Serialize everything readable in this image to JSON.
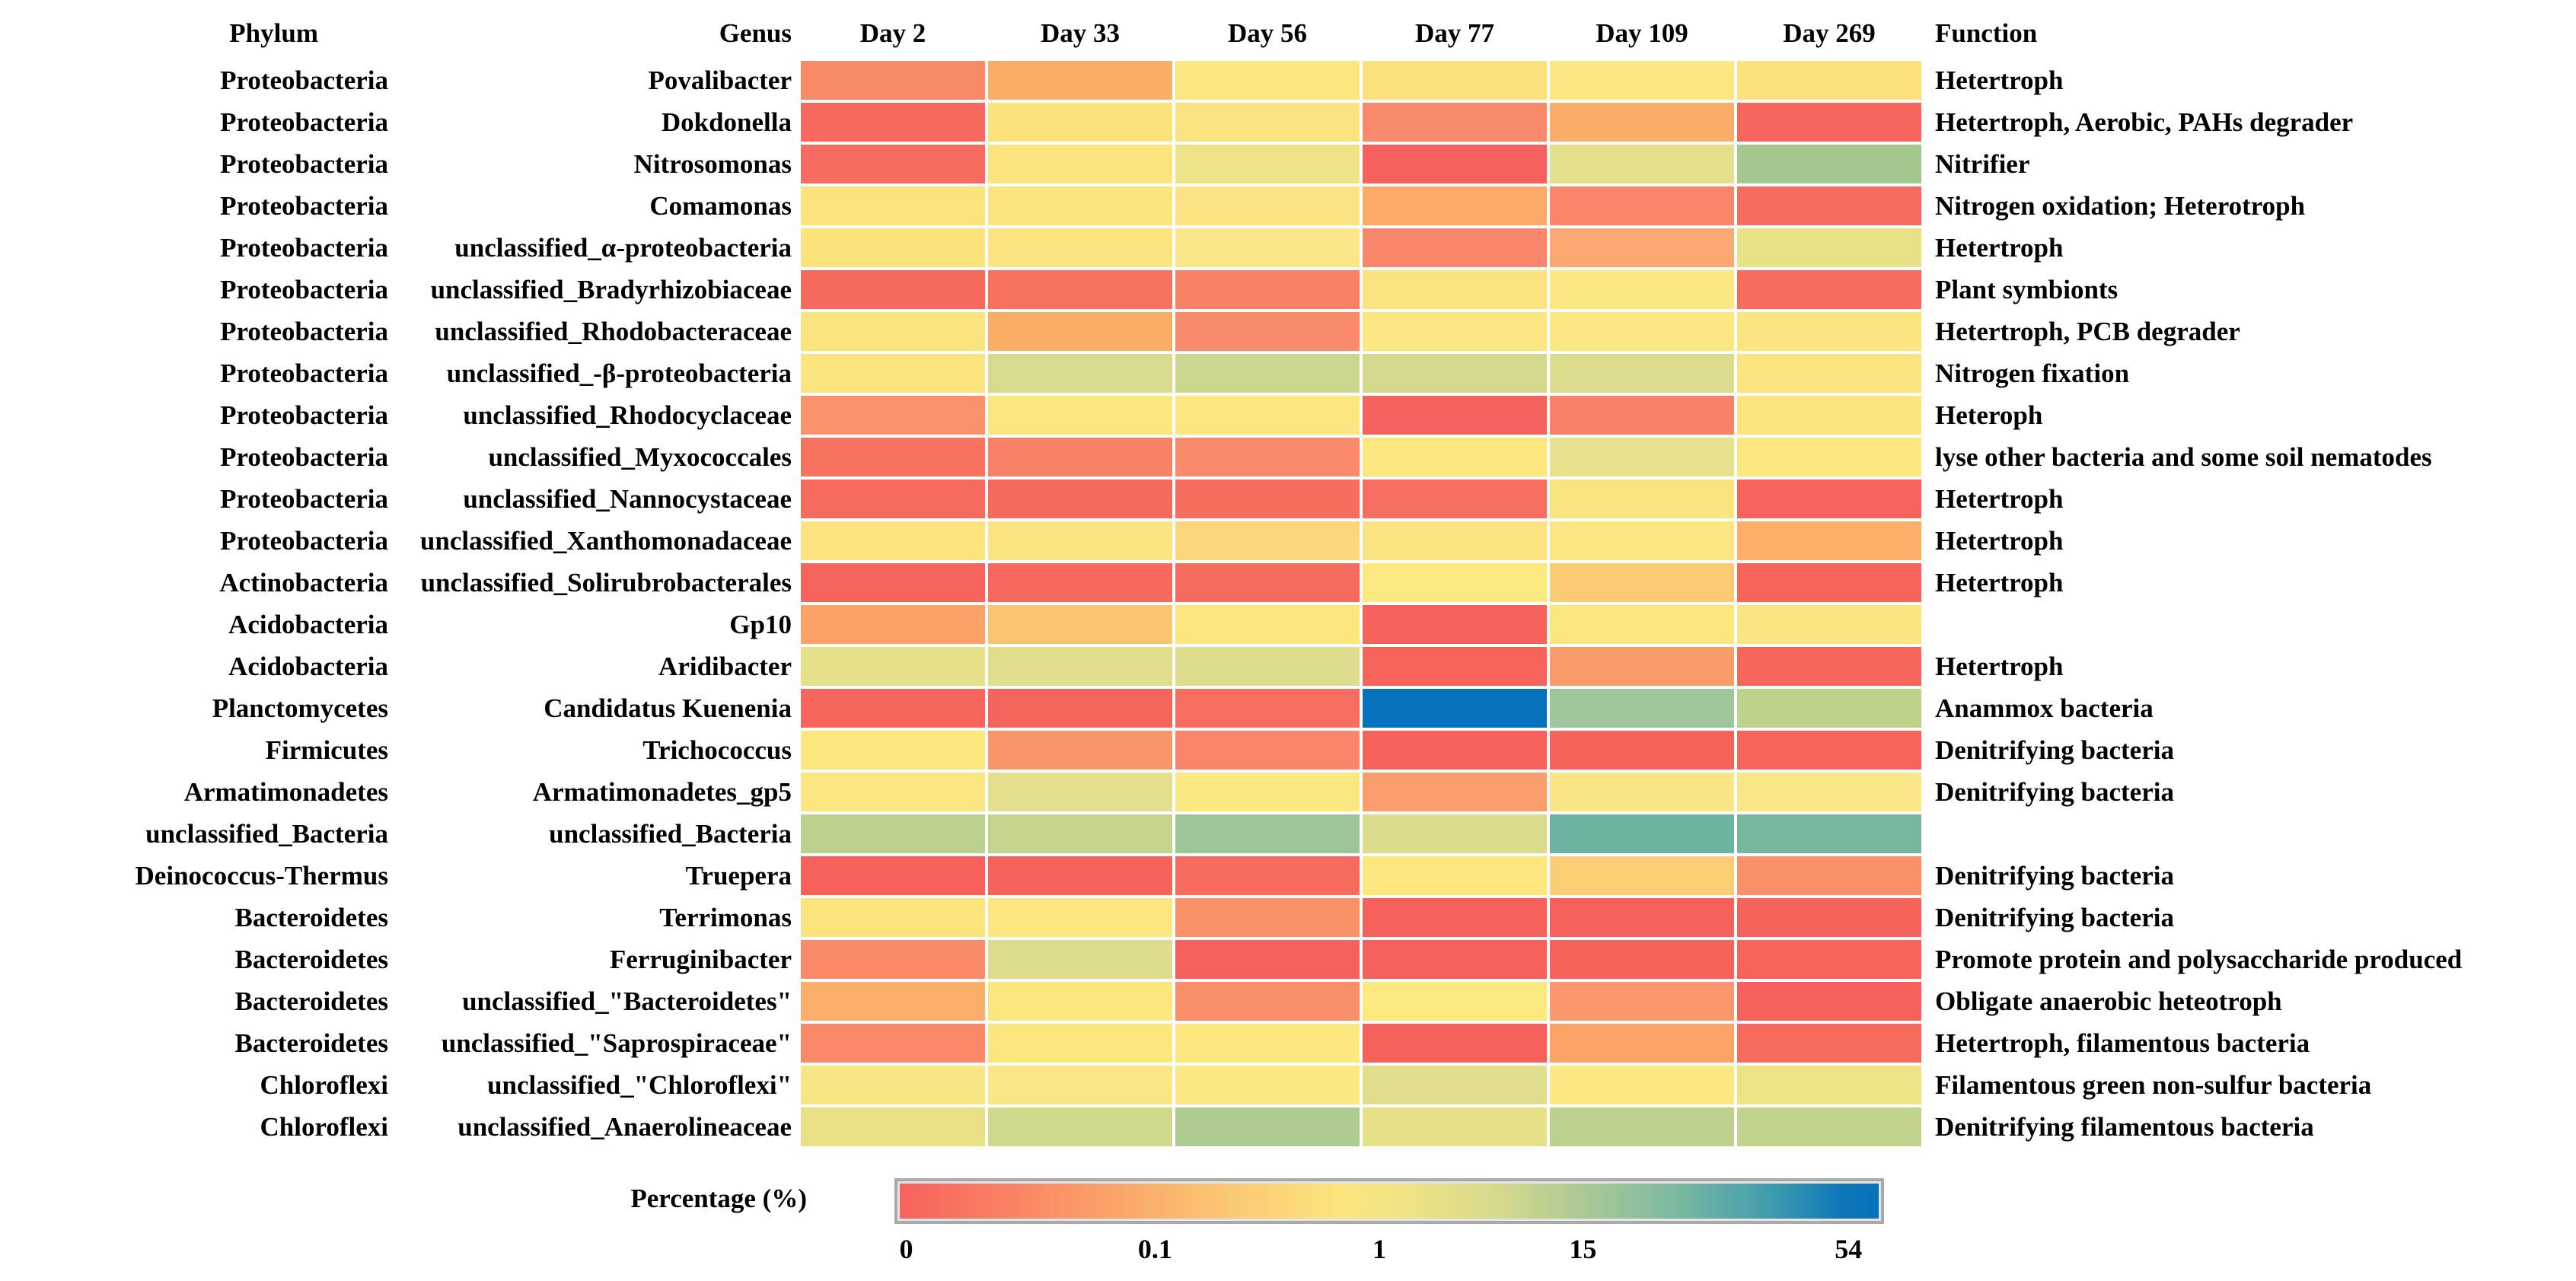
{
  "chart_data": {
    "type": "heatmap",
    "title": "",
    "headers": {
      "phylum": "Phylum",
      "genus": "Genus",
      "function": "Function"
    },
    "columns": [
      "Day 2",
      "Day 33",
      "Day 56",
      "Day 77",
      "Day 109",
      "Day 269"
    ],
    "rows": [
      {
        "phylum": "Proteobacteria",
        "genus": "Povalibacter",
        "function": "Hetertroph",
        "colors": [
          "#F98A68",
          "#FBAD67",
          "#FCE77F",
          "#FBE07C",
          "#FCE681",
          "#FCE17D"
        ]
      },
      {
        "phylum": "Proteobacteria",
        "genus": "Dokdonella",
        "function": "Hetertroph, Aerobic, PAHs degrader",
        "colors": [
          "#F7685F",
          "#FBE27B",
          "#FBE382",
          "#F9896C",
          "#FBAC68",
          "#F6655E"
        ]
      },
      {
        "phylum": "Proteobacteria",
        "genus": "Nitrosomonas",
        "function": "Nitrifier",
        "colors": [
          "#F76B60",
          "#FCE47D",
          "#EFE389",
          "#F6615D",
          "#E4E08C",
          "#A3C78F"
        ]
      },
      {
        "phylum": "Proteobacteria",
        "genus": "Comamonas",
        "function": "Nitrogen oxidation; Heterotroph",
        "colors": [
          "#FCE37C",
          "#FCE47E",
          "#FBE383",
          "#FBAB67",
          "#F9866B",
          "#F76C60"
        ]
      },
      {
        "phylum": "Proteobacteria",
        "genus": "unclassified_α-proteobacteria",
        "function": "Hetertroph",
        "colors": [
          "#FCE27B",
          "#FCE480",
          "#FBE689",
          "#F9856B",
          "#FBA873",
          "#E9E187"
        ]
      },
      {
        "phylum": "Proteobacteria",
        "genus": "unclassified_Bradyrhizobiaceae",
        "function": "Plant symbionts",
        "colors": [
          "#F66A5E",
          "#F7715F",
          "#F98165",
          "#FBE380",
          "#FCE883",
          "#F76C5F"
        ]
      },
      {
        "phylum": "Proteobacteria",
        "genus": "unclassified_Rhodobacteraceae",
        "function": "Hetertroph, PCB degrader",
        "colors": [
          "#FBE37E",
          "#FBAD66",
          "#F98A6A",
          "#FCE681",
          "#FCE782",
          "#FCE480"
        ]
      },
      {
        "phylum": "Proteobacteria",
        "genus": "unclassified_-β-proteobacteria",
        "function": "Nitrogen fixation",
        "colors": [
          "#FCE47E",
          "#D8DB8E",
          "#CBD78F",
          "#D5D98D",
          "#DCDC8E",
          "#FCE480"
        ]
      },
      {
        "phylum": "Proteobacteria",
        "genus": "unclassified_Rhodocyclaceae",
        "function": "Heteroph",
        "colors": [
          "#FA926C",
          "#FCE67F",
          "#FCE680",
          "#F6635E",
          "#F9816A",
          "#FCE57F"
        ]
      },
      {
        "phylum": "Proteobacteria",
        "genus": "unclassified_Myxococcales",
        "function": "lyse other bacteria and some soil nematodes",
        "colors": [
          "#F7725F",
          "#F98167",
          "#F98B6B",
          "#FCE77F",
          "#E8E18D",
          "#FCE780"
        ]
      },
      {
        "phylum": "Proteobacteria",
        "genus": "unclassified_Nannocystaceae",
        "function": "Hetertroph",
        "colors": [
          "#F66B5D",
          "#F66A5D",
          "#F66D5E",
          "#F66E5F",
          "#FBE47F",
          "#F6645D"
        ]
      },
      {
        "phylum": "Proteobacteria",
        "genus": "unclassified_Xanthomonadaceae",
        "function": "Hetertroph",
        "colors": [
          "#FCE37D",
          "#FCE480",
          "#FBD77B",
          "#FBE381",
          "#FCE682",
          "#FBAF69"
        ]
      },
      {
        "phylum": "Actinobacteria",
        "genus": "unclassified_Solirubrobacterales",
        "function": "Hetertroph",
        "colors": [
          "#F6655D",
          "#F7695E",
          "#F76B5F",
          "#FCEA81",
          "#FBCB73",
          "#F6645C"
        ]
      },
      {
        "phylum": "Acidobacteria",
        "genus": "Gp10",
        "function": "",
        "colors": [
          "#FBA268",
          "#FBC571",
          "#FCE77E",
          "#F6625C",
          "#FCE77E",
          "#FCE480"
        ]
      },
      {
        "phylum": "Acidobacteria",
        "genus": "Aridibacter",
        "function": "Hetertroph",
        "colors": [
          "#E6E08A",
          "#E0DE8C",
          "#DEDD8D",
          "#F6645C",
          "#FA9B6C",
          "#F6665D"
        ]
      },
      {
        "phylum": "Planctomycetes",
        "genus": "Candidatus Kuenenia",
        "function": "Anammox bacteria",
        "colors": [
          "#F6665C",
          "#F6655C",
          "#F76D60",
          "#0572BB",
          "#9EC59B",
          "#BED28C"
        ]
      },
      {
        "phylum": "Firmicutes",
        "genus": "Trichococcus",
        "function": "Denitrifying bacteria",
        "colors": [
          "#FCE67E",
          "#FA9569",
          "#F9856A",
          "#F6615B",
          "#F6635B",
          "#F6645C"
        ]
      },
      {
        "phylum": "Armatimonadetes",
        "genus": "Armatimonadetes_gp5",
        "function": "Denitrifying bacteria",
        "colors": [
          "#FCE682",
          "#E3DF8C",
          "#FCE883",
          "#FA9D6D",
          "#FAE586",
          "#FBE789"
        ]
      },
      {
        "phylum": "unclassified_Bacteria",
        "genus": "unclassified_Bacteria",
        "function": "",
        "colors": [
          "#BCD18D",
          "#C5D48D",
          "#9EC599",
          "#DADB8B",
          "#6CB3A1",
          "#76B79D"
        ]
      },
      {
        "phylum": "Deinococcus-Thermus",
        "genus": "Truepera",
        "function": "Denitrifying bacteria",
        "colors": [
          "#F6615B",
          "#F6635B",
          "#F76B5E",
          "#FCE77E",
          "#FBCD74",
          "#FA9068"
        ]
      },
      {
        "phylum": "Bacteroidetes",
        "genus": "Terrimonas",
        "function": "Denitrifying bacteria",
        "colors": [
          "#FCE47D",
          "#FCE680",
          "#FA9268",
          "#F6615B",
          "#F6625B",
          "#F6635B"
        ]
      },
      {
        "phylum": "Bacteroidetes",
        "genus": "Ferruginibacter",
        "function": "Promote protein and polysaccharide produced",
        "colors": [
          "#F98B68",
          "#DDDD8C",
          "#F6615B",
          "#F6625B",
          "#F6635B",
          "#F6645C"
        ]
      },
      {
        "phylum": "Bacteroidetes",
        "genus": "unclassified_\"Bacteroidetes\"",
        "function": "Obligate anaerobic heteotroph",
        "colors": [
          "#FBAE69",
          "#FCE77F",
          "#F98F69",
          "#FCE97F",
          "#FA976C",
          "#F6615B"
        ]
      },
      {
        "phylum": "Bacteroidetes",
        "genus": "unclassified_\"Saprospiraceae\"",
        "function": "Hetertroph, filamentous bacteria",
        "colors": [
          "#F98969",
          "#FCE77E",
          "#FCE87F",
          "#F6625B",
          "#FBA468",
          "#F76B5E"
        ]
      },
      {
        "phylum": "Chloroflexi",
        "genus": "unclassified_\"Chloroflexi\"",
        "function": "Filamentous green non-sulfur bacteria",
        "colors": [
          "#F8E584",
          "#F9E685",
          "#FBE783",
          "#E0DE8C",
          "#FCE780",
          "#EEE287"
        ]
      },
      {
        "phylum": "Chloroflexi",
        "genus": "unclassified_Anaerolineaceae",
        "function": "Denitrifying filamentous bacteria",
        "colors": [
          "#EAE187",
          "#D1D98C",
          "#AFCB91",
          "#E6E089",
          "#BCD18E",
          "#C1D38D"
        ]
      }
    ],
    "color_scale": {
      "label": "Percentage (%)",
      "ticks": [
        {
          "label": "0",
          "pos": 0.012
        },
        {
          "label": "0.1",
          "pos": 0.265
        },
        {
          "label": "1",
          "pos": 0.493
        },
        {
          "label": "15",
          "pos": 0.7
        },
        {
          "label": "54",
          "pos": 0.97
        }
      ],
      "gradient": [
        {
          "color": "#F8615D",
          "pos": 0
        },
        {
          "color": "#F97E63",
          "pos": 10
        },
        {
          "color": "#FA9E68",
          "pos": 20
        },
        {
          "color": "#FBC673",
          "pos": 33
        },
        {
          "color": "#FCE57E",
          "pos": 45
        },
        {
          "color": "#EFE385",
          "pos": 52
        },
        {
          "color": "#D5DA8C",
          "pos": 61
        },
        {
          "color": "#A9C995",
          "pos": 70
        },
        {
          "color": "#7BB9A0",
          "pos": 79
        },
        {
          "color": "#459FAC",
          "pos": 88
        },
        {
          "color": "#0E77B8",
          "pos": 96
        },
        {
          "color": "#0571BB",
          "pos": 100
        }
      ],
      "frame_color": "#a9a9a9"
    }
  }
}
